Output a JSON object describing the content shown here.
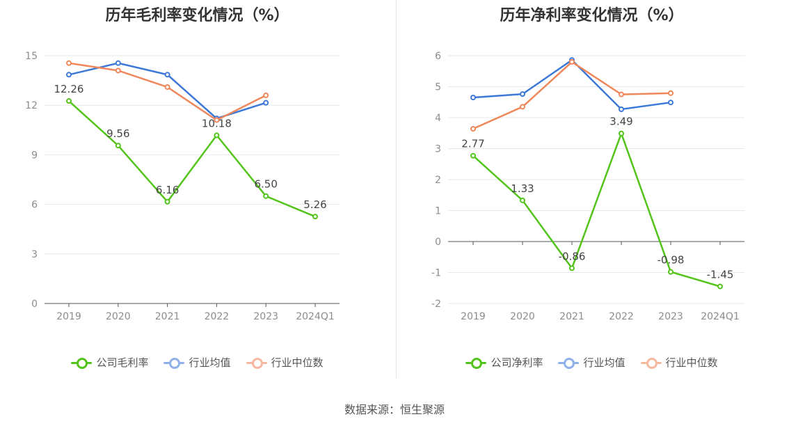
{
  "source": "数据来源：恒生聚源",
  "chart_data": [
    {
      "type": "line",
      "title": "历年毛利率变化情况（%）",
      "categories": [
        "2019",
        "2020",
        "2021",
        "2022",
        "2023",
        "2024Q1"
      ],
      "ylim": [
        0,
        15
      ],
      "yticks": [
        0,
        3,
        6,
        9,
        12,
        15
      ],
      "grid": true,
      "legend_position": "bottom",
      "series": [
        {
          "name": "公司毛利率",
          "color": "#52c41a",
          "values": [
            12.26,
            9.56,
            6.16,
            10.18,
            6.5,
            5.26
          ],
          "labels": [
            "12.26",
            "9.56",
            "6.16",
            "10.18",
            "6.50",
            "5.26"
          ]
        },
        {
          "name": "行业均值",
          "color": "#3c78d8",
          "values": [
            13.85,
            14.55,
            13.85,
            11.2,
            12.15,
            null
          ]
        },
        {
          "name": "行业中位数",
          "color": "#f0875a",
          "values": [
            14.55,
            14.1,
            13.1,
            11.1,
            12.6,
            null
          ]
        }
      ]
    },
    {
      "type": "line",
      "title": "历年净利率变化情况（%）",
      "categories": [
        "2019",
        "2020",
        "2021",
        "2022",
        "2023",
        "2024Q1"
      ],
      "ylim": [
        -2,
        6
      ],
      "yticks": [
        -2,
        -1,
        0,
        1,
        2,
        3,
        4,
        5,
        6
      ],
      "grid": true,
      "legend_position": "bottom",
      "series": [
        {
          "name": "公司净利率",
          "color": "#52c41a",
          "values": [
            2.77,
            1.33,
            -0.86,
            3.49,
            -0.98,
            -1.45
          ],
          "labels": [
            "2.77",
            "1.33",
            "-0.86",
            "3.49",
            "-0.98",
            "-1.45"
          ]
        },
        {
          "name": "行业均值",
          "color": "#3c78d8",
          "values": [
            4.65,
            4.76,
            5.86,
            4.27,
            4.49,
            null
          ]
        },
        {
          "name": "行业中位数",
          "color": "#f0875a",
          "values": [
            3.64,
            4.35,
            5.8,
            4.75,
            4.79,
            null
          ]
        }
      ]
    }
  ]
}
